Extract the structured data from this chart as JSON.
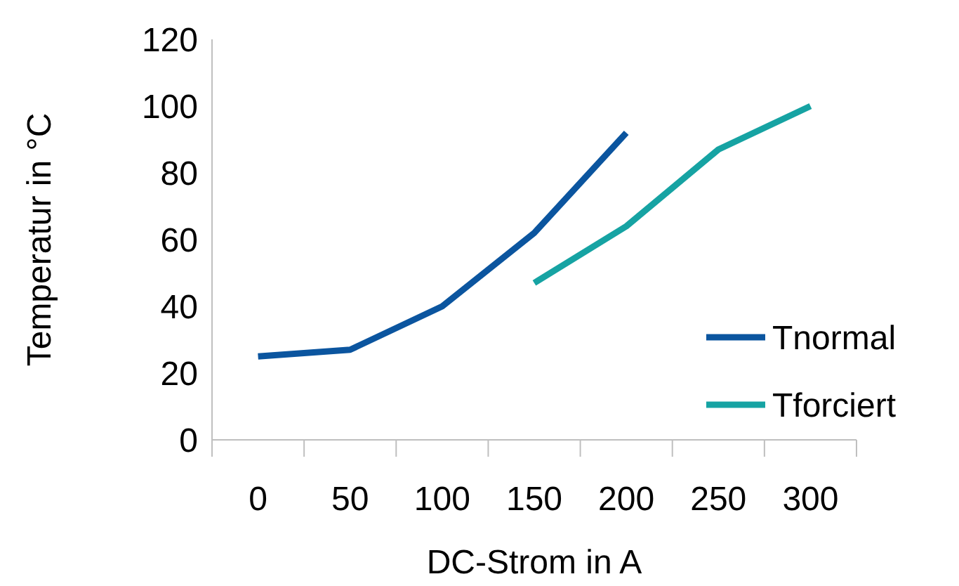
{
  "chart_data": {
    "type": "line",
    "xlabel": "DC-Strom in A",
    "ylabel": "Temperatur in °C",
    "categories": [
      "0",
      "50",
      "100",
      "150",
      "200",
      "250",
      "300"
    ],
    "series": [
      {
        "name": "Tnormal",
        "color": "#0b559f",
        "values": [
          25,
          27,
          40,
          62,
          92,
          null,
          null
        ]
      },
      {
        "name": "Tforciert",
        "color": "#16a3a3",
        "values": [
          null,
          null,
          null,
          47,
          64,
          87,
          100
        ]
      }
    ],
    "ylim": [
      0,
      120
    ],
    "yticks": [
      0,
      20,
      40,
      60,
      80,
      100,
      120
    ],
    "grid": false,
    "legend": "bottom right",
    "marker": "none",
    "line_style": "solid"
  }
}
